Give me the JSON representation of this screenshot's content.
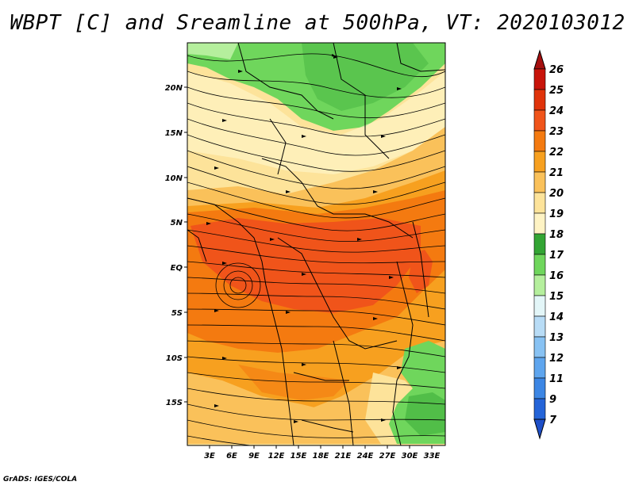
{
  "title": "WBPT [C] and Sreamline at 500hPa, VT: 2020103012",
  "footer": "GrADS: IGES/COLA",
  "axes": {
    "lat_labels": [
      "20N",
      "15N",
      "10N",
      "5N",
      "EQ",
      "5S",
      "10S",
      "15S"
    ],
    "lon_labels": [
      "3E",
      "6E",
      "9E",
      "12E",
      "15E",
      "18E",
      "21E",
      "24E",
      "27E",
      "30E",
      "33E"
    ]
  },
  "colorbar": {
    "levels": [
      "26",
      "25",
      "24",
      "23",
      "22",
      "21",
      "20",
      "19",
      "18",
      "17",
      "16",
      "15",
      "14",
      "13",
      "12",
      "11",
      "9",
      "7"
    ],
    "colors": {
      "above_26": "#a50f0f",
      "25_26": "#c8140a",
      "24_25": "#e0330a",
      "23_24": "#f0541a",
      "22_23": "#f47a10",
      "21_22": "#f7a01f",
      "20_21": "#fac15a",
      "19_20": "#fde39a",
      "18_19": "#fef3c4",
      "17_18": "#33a534",
      "16_17": "#6fd65c",
      "15_16": "#b5ef9d",
      "14_15": "#e3f6f8",
      "13_14": "#b8dcf6",
      "12_13": "#88c2f3",
      "11_12": "#5ea5ee",
      "9_11": "#3c86e4",
      "7_9": "#2464d8",
      "below_7": "#1e4fc8"
    }
  }
}
